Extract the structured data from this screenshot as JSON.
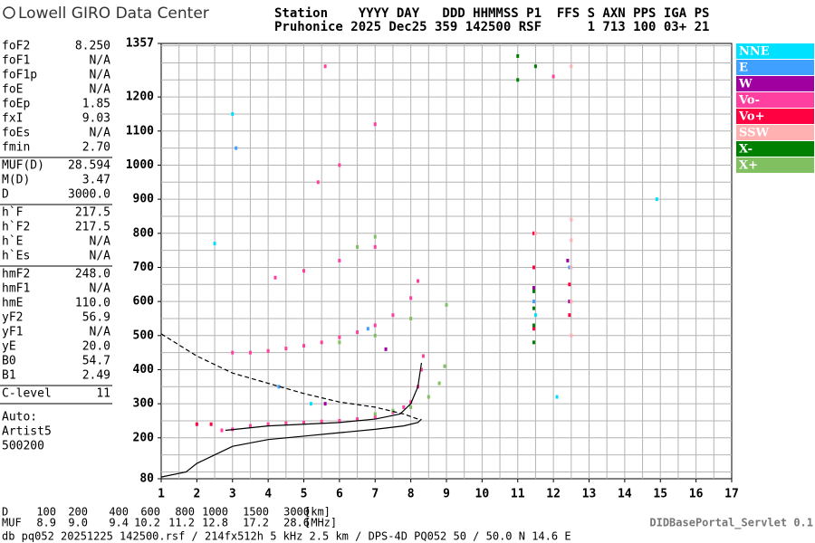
{
  "logo": "Lowell GIRO Data Center",
  "header": [
    "Station    YYYY DAY   DDD HHMMSS P1  FFS S AXN PPS IGA PS",
    "Pruhonice 2025 Dec25 359 142500 RSF      1 713 100 03+ 21"
  ],
  "parameters": [
    [
      [
        "foF2",
        "8.250"
      ],
      [
        "foF1",
        "N/A"
      ],
      [
        "foF1p",
        "N/A"
      ],
      [
        "foE",
        "N/A"
      ],
      [
        "foEp",
        "1.85"
      ],
      [
        "fxI",
        "9.03"
      ],
      [
        "foEs",
        "N/A"
      ],
      [
        "fmin",
        "2.70"
      ]
    ],
    [
      [
        "MUF(D)",
        "28.594"
      ],
      [
        "M(D)",
        "3.47"
      ],
      [
        "D",
        "3000.0"
      ]
    ],
    [
      [
        "h`F",
        "217.5"
      ],
      [
        "h`F2",
        "217.5"
      ],
      [
        "h`E",
        "N/A"
      ],
      [
        "h`Es",
        "N/A"
      ]
    ],
    [
      [
        "hmF2",
        "248.0"
      ],
      [
        "hmF1",
        "N/A"
      ],
      [
        "hmE",
        "110.0"
      ],
      [
        "yF2",
        "56.9"
      ],
      [
        "yF1",
        "N/A"
      ],
      [
        "yE",
        "20.0"
      ],
      [
        "B0",
        "54.7"
      ],
      [
        "B1",
        "2.49"
      ]
    ],
    [
      [
        "C-level",
        "11"
      ]
    ]
  ],
  "autoscaling": [
    "Auto:",
    "Artist5",
    "500200"
  ],
  "chart_data": {
    "type": "scatter",
    "xlim": [
      1,
      17
    ],
    "ylim": [
      80,
      1357
    ],
    "xticks": [
      1,
      2,
      3,
      4,
      5,
      6,
      7,
      8,
      9,
      10,
      11,
      12,
      13,
      14,
      15,
      16,
      17
    ],
    "yticks": [
      80,
      200,
      300,
      400,
      500,
      600,
      700,
      800,
      900,
      1000,
      1100,
      1200,
      1357
    ],
    "xgrid": [
      1.5,
      2,
      2.5,
      3,
      3.5,
      4,
      4.5,
      5,
      5.5,
      6,
      6.5,
      7,
      7.5,
      8,
      8.5,
      9,
      9.5,
      10,
      10.5,
      11,
      11.5,
      12,
      12.5,
      13,
      13.5,
      14,
      14.5,
      15,
      15.5,
      16,
      16.5
    ],
    "ygrid": [
      100,
      150,
      200,
      250,
      300,
      350,
      400,
      450,
      500,
      550,
      600,
      650,
      700,
      750,
      800,
      850,
      900,
      950,
      1000,
      1050,
      1100,
      1150,
      1200,
      1250,
      1300,
      1350
    ],
    "grid": true,
    "series": [
      {
        "name": "NNE",
        "color": "#00e0ff",
        "x": [
          3.0,
          5.2,
          11.5,
          12.1,
          2.5,
          14.9
        ],
        "values": [
          1150,
          300,
          560,
          320,
          770,
          900
        ]
      },
      {
        "name": "E",
        "color": "#40a0ff",
        "x": [
          11.45,
          12.45,
          4.3,
          6.8,
          3.1
        ],
        "values": [
          600,
          700,
          350,
          520,
          1050
        ]
      },
      {
        "name": "W",
        "color": "#a000a0",
        "x": [
          11.45,
          12.45,
          5.6,
          7.3,
          12.4
        ],
        "values": [
          640,
          600,
          300,
          460,
          720
        ]
      },
      {
        "name": "Vo-",
        "color": "#ff40a0",
        "x": [
          2.7,
          3.0,
          3.5,
          4.0,
          4.5,
          5.0,
          5.5,
          6.0,
          6.5,
          7.0,
          7.5,
          7.8,
          8.0,
          8.2,
          8.3,
          8.35,
          3.0,
          3.5,
          4.0,
          4.5,
          5.0,
          5.5,
          6.0,
          6.5,
          7.0,
          7.5,
          8.0,
          8.2,
          4.2,
          5.0,
          6.0,
          7.0,
          5.4,
          6.0,
          7.0,
          5.6,
          12.0
        ],
        "values": [
          222,
          225,
          235,
          240,
          243,
          245,
          248,
          250,
          255,
          262,
          275,
          290,
          305,
          350,
          400,
          440,
          450,
          450,
          455,
          462,
          470,
          480,
          495,
          510,
          530,
          560,
          610,
          660,
          670,
          690,
          720,
          760,
          950,
          1000,
          1120,
          1290,
          1260
        ]
      },
      {
        "name": "Vo+",
        "color": "#ff0040",
        "x": [
          11.45,
          11.45,
          11.45,
          12.45,
          12.45,
          2.4,
          2.0
        ],
        "values": [
          520,
          700,
          800,
          560,
          650,
          240,
          240
        ]
      },
      {
        "name": "SSW",
        "color": "#ffb0b0",
        "x": [
          12.5,
          12.5,
          12.5,
          12.5,
          12.5,
          11.5,
          12.5
        ],
        "values": [
          500,
          600,
          700,
          780,
          840,
          800,
          1290
        ]
      },
      {
        "name": "X-",
        "color": "#008000",
        "x": [
          11.45,
          11.45,
          11.45,
          11.45,
          11.0,
          11.0,
          11.5
        ],
        "values": [
          480,
          530,
          580,
          630,
          1250,
          1320,
          1290
        ]
      },
      {
        "name": "X+",
        "color": "#80c060",
        "x": [
          7.0,
          7.5,
          8.0,
          8.5,
          8.8,
          8.95,
          6.0,
          7.0,
          8.0,
          9.0,
          6.5,
          7.0
        ],
        "values": [
          270,
          280,
          290,
          320,
          360,
          410,
          480,
          500,
          550,
          590,
          760,
          790
        ]
      }
    ],
    "profiles": [
      {
        "dash": true,
        "x": [
          1.0,
          2.0,
          3.0,
          4.0,
          5.0,
          6.0,
          7.0,
          7.8,
          8.2
        ],
        "values": [
          505,
          440,
          390,
          360,
          330,
          305,
          290,
          270,
          255
        ]
      },
      {
        "dash": false,
        "x": [
          1.0,
          1.7,
          2.0,
          3.0,
          4.0,
          5.0,
          6.0,
          7.0,
          7.8,
          8.2,
          8.3
        ],
        "values": [
          85,
          100,
          125,
          175,
          195,
          205,
          215,
          225,
          235,
          245,
          255
        ]
      },
      {
        "dash": false,
        "x": [
          2.8,
          4.0,
          6.0,
          7.0,
          7.7,
          8.0,
          8.2,
          8.3
        ],
        "values": [
          222,
          235,
          245,
          255,
          270,
          300,
          350,
          420
        ]
      }
    ]
  },
  "footer": {
    "distance": {
      "label": "D",
      "values": [
        "100",
        "200",
        "400",
        "600",
        "800",
        "1000",
        "1500",
        "3000"
      ],
      "unit": "[km]"
    },
    "muf": {
      "label": "MUF",
      "values": [
        "8.9",
        "9.0",
        "9.4",
        "10.2",
        "11.2",
        "12.8",
        "17.2",
        "28.6"
      ],
      "unit": "[MHz]"
    },
    "file": "db pq052 20251225 142500.rsf / 214fx512h 5 kHz 2.5 km / DPS-4D PQ052 50 / 50.0 N 14.6 E",
    "servlet": "DIDBasePortal_Servlet 0.1"
  }
}
